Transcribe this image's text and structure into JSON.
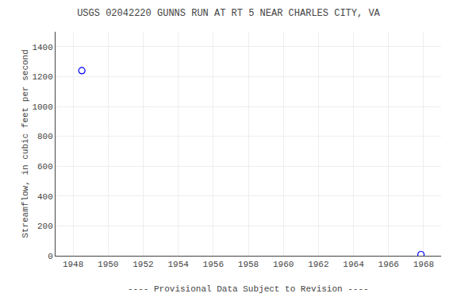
{
  "chart_data": {
    "type": "scatter",
    "title": "USGS 02042220 GUNNS RUN AT RT 5 NEAR CHARLES CITY, VA",
    "y_label": "Streamflow, in cubic feet per second",
    "x": [
      1948.5,
      1967.85
    ],
    "values": [
      1240,
      8
    ],
    "color": "#0000ff",
    "marker": "circle-open",
    "xlim": [
      1947,
      1969
    ],
    "xticks": [
      1948,
      1950,
      1952,
      1954,
      1956,
      1958,
      1960,
      1962,
      1964,
      1966,
      1968
    ],
    "ylim": [
      0,
      1500
    ],
    "yticks": [
      0,
      200,
      400,
      600,
      800,
      1000,
      1200,
      1400
    ],
    "grid": true,
    "annotations": [
      "---- Provisional Data Subject to Revision ----"
    ]
  }
}
